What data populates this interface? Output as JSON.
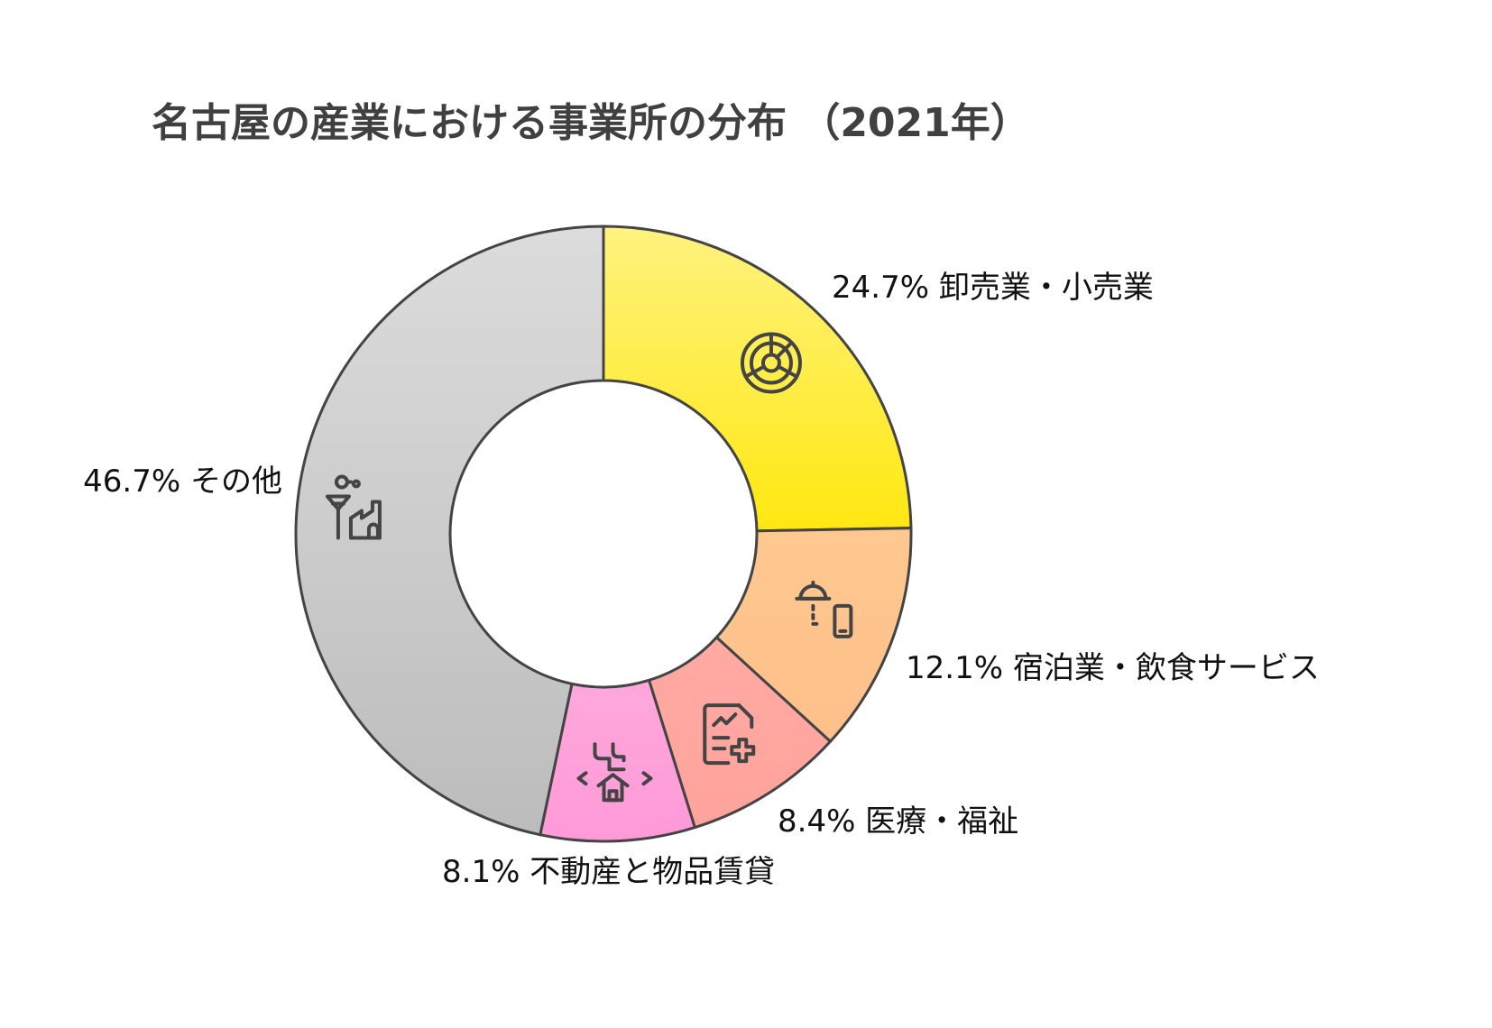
{
  "chart_data": {
    "type": "pie",
    "title": "名古屋の産業における事業所の分布 （2021年）",
    "donut": true,
    "slices": [
      {
        "label": "卸売業・小売業",
        "value": 24.7,
        "value_label": "24.7%",
        "color_top": "#fff280",
        "color_bottom": "#ffe810",
        "icon": "pie-chart-icon"
      },
      {
        "label": "宿泊業・飲食サービス",
        "value": 12.1,
        "value_label": "12.1%",
        "color_top": "#ffc890",
        "color_bottom": "#ffc08a",
        "icon": "food-delivery-icon"
      },
      {
        "label": "医療・福祉",
        "value": 8.4,
        "value_label": "8.4%",
        "color_top": "#ffaaa3",
        "color_bottom": "#ffa39c",
        "icon": "medical-report-icon"
      },
      {
        "label": "不動産と物品賃貸",
        "value": 8.1,
        "value_label": "8.1%",
        "color_top": "#ffa8dc",
        "color_bottom": "#ff9ad8",
        "icon": "real-estate-icon"
      },
      {
        "label": "その他",
        "value": 46.7,
        "value_label": "46.7%",
        "color_top": "#dcdcdc",
        "color_bottom": "#bcbcbc",
        "icon": "factory-icon"
      }
    ],
    "legend": "none"
  }
}
